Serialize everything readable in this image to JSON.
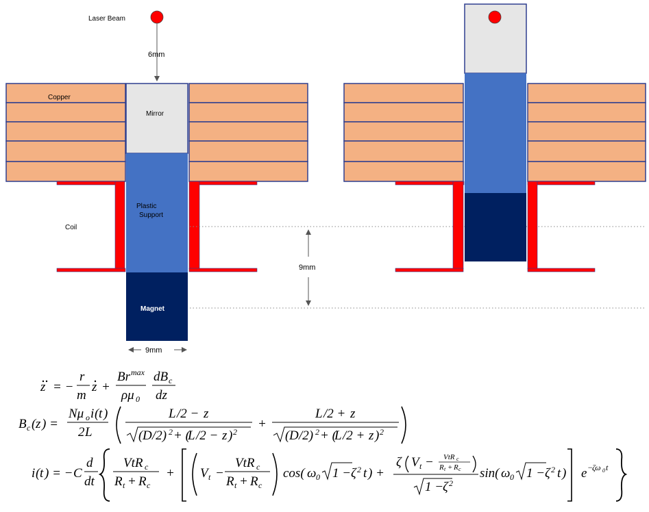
{
  "labels": {
    "laser_beam": "Laser Beam",
    "gap": "6mm",
    "copper": "Copper",
    "mirror": "Mirror",
    "plastic_line1": "Plastic",
    "plastic_line2": "Support",
    "coil": "Coil",
    "magnet": "Magnet",
    "travel": "9mm",
    "width": "9mm"
  },
  "equations": {
    "motion": "z̈ = −(r/m) ż + (Br^max/(ρμ₀)) dB_c/dz",
    "field": "B_c(z) = (Nμ₀ i(t)/2L) ( (L/2 − z)/√((D/2)² + (L/2 − z)²) + (L/2 + z)/√((D/2)² + (L/2 + z)²) )",
    "current": "i(t) = −C d/dt { VtR_c/(R_t + R_c) + [ (V_t − VtR_c/(R_t + R_c)) cos(ω₀√(1−ζ²) t) + ζ(V_t − VtR_c/(R_t+R_c))/√(1−ζ²) sin(ω₀√(1−ζ²) t) ] e^(−ζω₀t) }"
  },
  "colors": {
    "copper": "#f4b183",
    "copper_border": "#2f3f8f",
    "mirror": "#e6e6e6",
    "plastic": "#4472c4",
    "magnet": "#002060",
    "bobbin": "#ff0000",
    "laser_dot": "#ff0000"
  }
}
